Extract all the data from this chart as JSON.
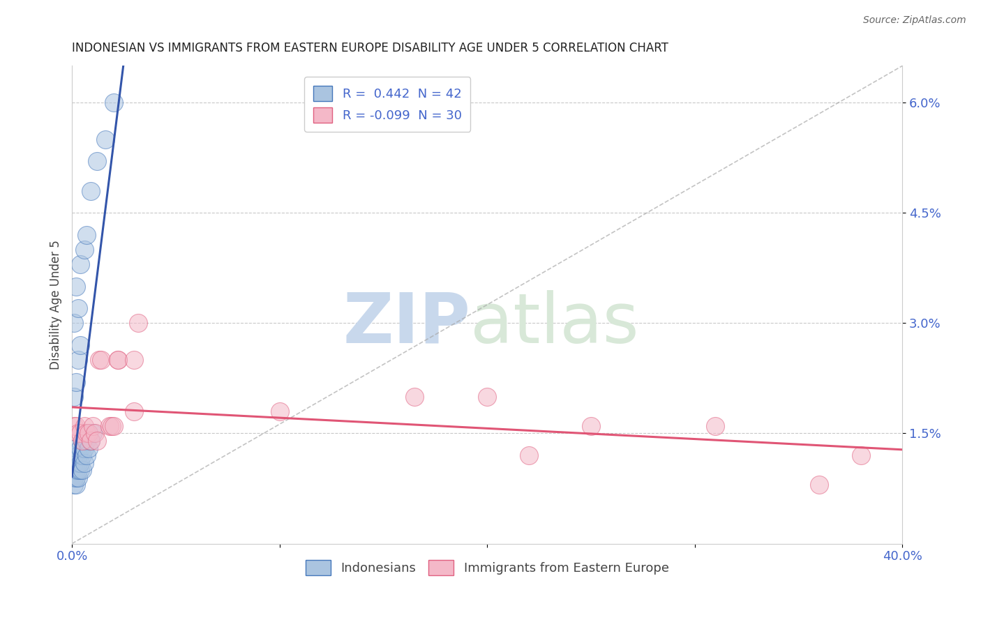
{
  "title": "INDONESIAN VS IMMIGRANTS FROM EASTERN EUROPE DISABILITY AGE UNDER 5 CORRELATION CHART",
  "source": "Source: ZipAtlas.com",
  "ylabel": "Disability Age Under 5",
  "xlim": [
    0.0,
    0.4
  ],
  "ylim": [
    0.0,
    0.065
  ],
  "xticks": [
    0.0,
    0.1,
    0.2,
    0.3,
    0.4
  ],
  "xticklabels": [
    "0.0%",
    "",
    "",
    "",
    "40.0%"
  ],
  "yticks": [
    0.015,
    0.03,
    0.045,
    0.06
  ],
  "yticklabels": [
    "1.5%",
    "3.0%",
    "4.5%",
    "6.0%"
  ],
  "grid_color": "#c8c8c8",
  "background_color": "#ffffff",
  "legend_R1": "0.442",
  "legend_N1": "42",
  "legend_R2": "-0.099",
  "legend_N2": "30",
  "blue_fill": "#aac4e0",
  "blue_edge": "#4477bb",
  "pink_fill": "#f4b8c8",
  "pink_edge": "#e06080",
  "blue_line": "#3355aa",
  "pink_line": "#e05575",
  "tick_color": "#4466cc",
  "indonesian_points": [
    [
      0.001,
      0.008
    ],
    [
      0.001,
      0.009
    ],
    [
      0.001,
      0.01
    ],
    [
      0.001,
      0.011
    ],
    [
      0.001,
      0.012
    ],
    [
      0.002,
      0.008
    ],
    [
      0.002,
      0.009
    ],
    [
      0.002,
      0.01
    ],
    [
      0.002,
      0.011
    ],
    [
      0.002,
      0.013
    ],
    [
      0.003,
      0.009
    ],
    [
      0.003,
      0.01
    ],
    [
      0.003,
      0.011
    ],
    [
      0.003,
      0.012
    ],
    [
      0.004,
      0.01
    ],
    [
      0.004,
      0.011
    ],
    [
      0.004,
      0.013
    ],
    [
      0.005,
      0.01
    ],
    [
      0.005,
      0.012
    ],
    [
      0.005,
      0.014
    ],
    [
      0.006,
      0.011
    ],
    [
      0.006,
      0.013
    ],
    [
      0.007,
      0.012
    ],
    [
      0.007,
      0.014
    ],
    [
      0.008,
      0.013
    ],
    [
      0.008,
      0.015
    ],
    [
      0.009,
      0.014
    ],
    [
      0.01,
      0.015
    ],
    [
      0.001,
      0.02
    ],
    [
      0.002,
      0.022
    ],
    [
      0.003,
      0.025
    ],
    [
      0.004,
      0.027
    ],
    [
      0.001,
      0.03
    ],
    [
      0.003,
      0.032
    ],
    [
      0.002,
      0.035
    ],
    [
      0.004,
      0.038
    ],
    [
      0.006,
      0.04
    ],
    [
      0.007,
      0.042
    ],
    [
      0.009,
      0.048
    ],
    [
      0.012,
      0.052
    ],
    [
      0.016,
      0.055
    ],
    [
      0.02,
      0.06
    ]
  ],
  "eastern_europe_points": [
    [
      0.001,
      0.016
    ],
    [
      0.002,
      0.016
    ],
    [
      0.003,
      0.015
    ],
    [
      0.004,
      0.015
    ],
    [
      0.005,
      0.014
    ],
    [
      0.006,
      0.016
    ],
    [
      0.007,
      0.015
    ],
    [
      0.008,
      0.015
    ],
    [
      0.009,
      0.014
    ],
    [
      0.01,
      0.016
    ],
    [
      0.011,
      0.015
    ],
    [
      0.012,
      0.014
    ],
    [
      0.013,
      0.025
    ],
    [
      0.014,
      0.025
    ],
    [
      0.018,
      0.016
    ],
    [
      0.019,
      0.016
    ],
    [
      0.02,
      0.016
    ],
    [
      0.022,
      0.025
    ],
    [
      0.022,
      0.025
    ],
    [
      0.03,
      0.018
    ],
    [
      0.03,
      0.025
    ],
    [
      0.032,
      0.03
    ],
    [
      0.1,
      0.018
    ],
    [
      0.165,
      0.02
    ],
    [
      0.2,
      0.02
    ],
    [
      0.22,
      0.012
    ],
    [
      0.25,
      0.016
    ],
    [
      0.31,
      0.016
    ],
    [
      0.36,
      0.008
    ],
    [
      0.38,
      0.012
    ]
  ],
  "diag_line": [
    [
      0.0,
      0.0
    ],
    [
      0.4,
      0.065
    ]
  ]
}
